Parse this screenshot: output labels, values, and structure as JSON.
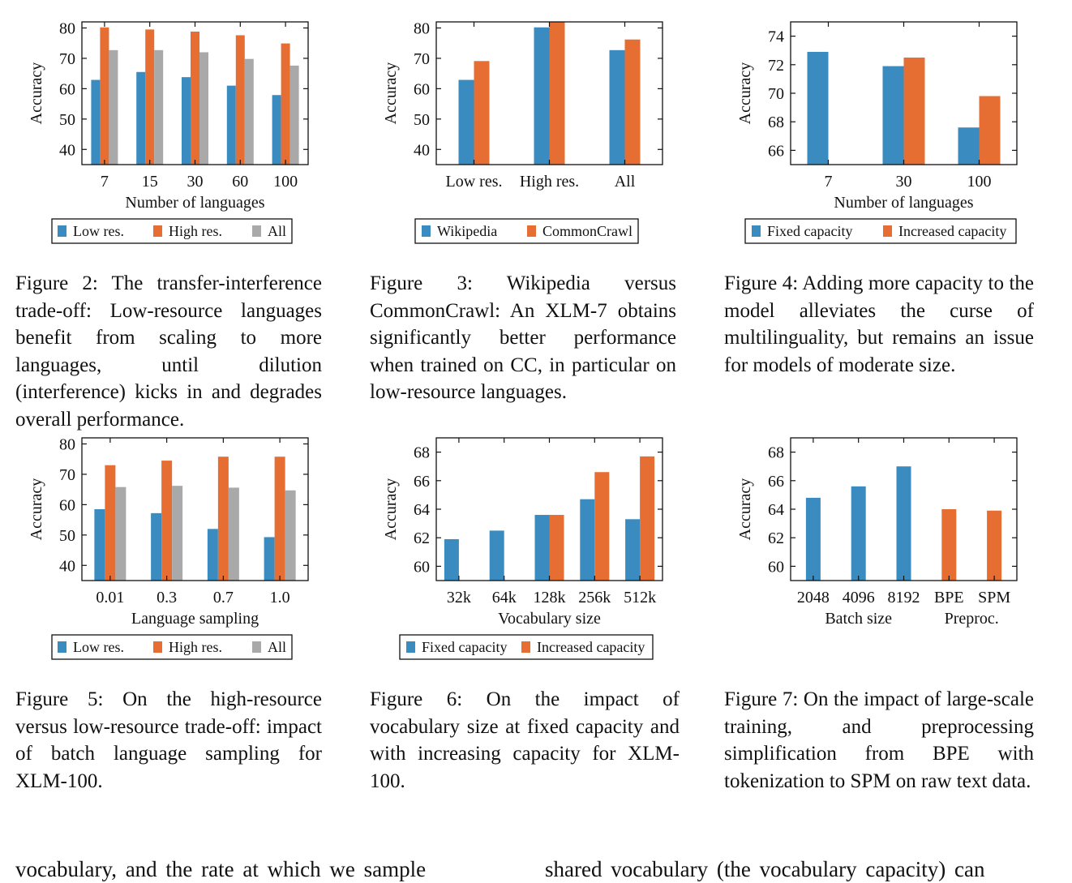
{
  "colors": {
    "blue": "#3a8bc0",
    "orange": "#e66e32",
    "gray": "#a9a9a9"
  },
  "figures": [
    {
      "id": "fig2",
      "caption": "Figure 2: The transfer-interference trade-off: Low-resource languages benefit from scaling to more languages, until dilution (interference) kicks in and degrades overall performance.",
      "chart_data": {
        "type": "bar",
        "title": "",
        "xlabel": "Number of languages",
        "ylabel": "Accuracy",
        "categories": [
          "7",
          "15",
          "30",
          "60",
          "100"
        ],
        "ylim": [
          35,
          82
        ],
        "yticks": [
          40,
          50,
          60,
          70,
          80
        ],
        "grid": false,
        "legend_position": "bottom",
        "series": [
          {
            "name": "Low res.",
            "color": "blue",
            "values": [
              62.9,
              65.5,
              63.8,
              61.0,
              57.9
            ]
          },
          {
            "name": "High res.",
            "color": "orange",
            "values": [
              80.2,
              79.5,
              78.8,
              77.6,
              74.9
            ]
          },
          {
            "name": "All",
            "color": "gray",
            "values": [
              72.7,
              72.7,
              72.0,
              69.8,
              67.6
            ]
          }
        ]
      }
    },
    {
      "id": "fig3",
      "caption": "Figure 3: Wikipedia versus CommonCrawl: An XLM-7 obtains significantly better performance when trained on CC, in particular on low-resource languages.",
      "chart_data": {
        "type": "bar",
        "title": "",
        "xlabel": "",
        "ylabel": "Accuracy",
        "categories": [
          "Low res.",
          "High res.",
          "All"
        ],
        "ylim": [
          35,
          82
        ],
        "yticks": [
          40,
          50,
          60,
          70,
          80
        ],
        "grid": false,
        "legend_position": "bottom",
        "series": [
          {
            "name": "Wikipedia",
            "color": "blue",
            "values": [
              62.9,
              80.2,
              72.7
            ]
          },
          {
            "name": "CommonCrawl",
            "color": "orange",
            "values": [
              69.1,
              82.1,
              76.2
            ]
          }
        ]
      }
    },
    {
      "id": "fig4",
      "caption": "Figure 4: Adding more capacity to the model alleviates the curse of multilinguality, but remains an issue for models of moderate size.",
      "chart_data": {
        "type": "bar",
        "title": "",
        "xlabel": "Number of languages",
        "ylabel": "Accuracy",
        "categories": [
          "7",
          "30",
          "100"
        ],
        "ylim": [
          65,
          75
        ],
        "yticks": [
          66,
          68,
          70,
          72,
          74
        ],
        "grid": false,
        "legend_position": "bottom",
        "series": [
          {
            "name": "Fixed capacity",
            "color": "blue",
            "values": [
              72.9,
              71.9,
              67.6
            ]
          },
          {
            "name": "Increased capacity",
            "color": "orange",
            "values": [
              null,
              72.5,
              69.8
            ]
          }
        ]
      }
    },
    {
      "id": "fig5",
      "caption": "Figure 5: On the high-resource versus low-resource trade-off: impact of batch language sampling for XLM-100.",
      "chart_data": {
        "type": "bar",
        "title": "",
        "xlabel": "Language sampling",
        "ylabel": "Accuracy",
        "categories": [
          "0.01",
          "0.3",
          "0.7",
          "1.0"
        ],
        "ylim": [
          35,
          82
        ],
        "yticks": [
          40,
          50,
          60,
          70,
          80
        ],
        "grid": false,
        "legend_position": "bottom",
        "series": [
          {
            "name": "Low res.",
            "color": "blue",
            "values": [
              58.5,
              57.2,
              52.0,
              49.3
            ]
          },
          {
            "name": "High res.",
            "color": "orange",
            "values": [
              73.0,
              74.5,
              75.8,
              75.8
            ]
          },
          {
            "name": "All",
            "color": "gray",
            "values": [
              65.8,
              66.2,
              65.6,
              64.7
            ]
          }
        ]
      }
    },
    {
      "id": "fig6",
      "caption": "Figure 6: On the impact of vocabulary size at fixed capacity and with increasing capacity for XLM-100.",
      "chart_data": {
        "type": "bar",
        "title": "",
        "xlabel": "Vocabulary size",
        "ylabel": "Accuracy",
        "categories": [
          "32k",
          "64k",
          "128k",
          "256k",
          "512k"
        ],
        "ylim": [
          59,
          69
        ],
        "yticks": [
          60,
          62,
          64,
          66,
          68
        ],
        "grid": false,
        "legend_position": "bottom",
        "series": [
          {
            "name": "Fixed capacity",
            "color": "blue",
            "values": [
              61.9,
              62.5,
              63.6,
              64.7,
              63.3
            ]
          },
          {
            "name": "Increased capacity",
            "color": "orange",
            "values": [
              null,
              null,
              63.6,
              66.6,
              67.7
            ]
          }
        ]
      }
    },
    {
      "id": "fig7",
      "caption": "Figure 7: On the impact of large-scale training, and preprocessing simplification from BPE with tokenization to SPM on raw text data.",
      "chart_data": {
        "type": "bar",
        "title": "",
        "xlabel": "",
        "group_labels": [
          "Batch size",
          "Preproc."
        ],
        "ylabel": "Accuracy",
        "categories": [
          "2048",
          "4096",
          "8192",
          "BPE",
          "SPM"
        ],
        "ylim": [
          59,
          69
        ],
        "yticks": [
          60,
          62,
          64,
          66,
          68
        ],
        "grid": false,
        "legend_position": "none",
        "series": [
          {
            "name": "",
            "color": "blue",
            "values": [
              64.8,
              65.6,
              67.0,
              null,
              null
            ]
          },
          {
            "name": "",
            "color": "orange",
            "values": [
              null,
              null,
              null,
              64.0,
              63.9
            ]
          }
        ]
      }
    }
  ],
  "body_text": {
    "left": "vocabulary, and the rate at which we sample",
    "right": "shared vocabulary (the vocabulary capacity) can"
  }
}
